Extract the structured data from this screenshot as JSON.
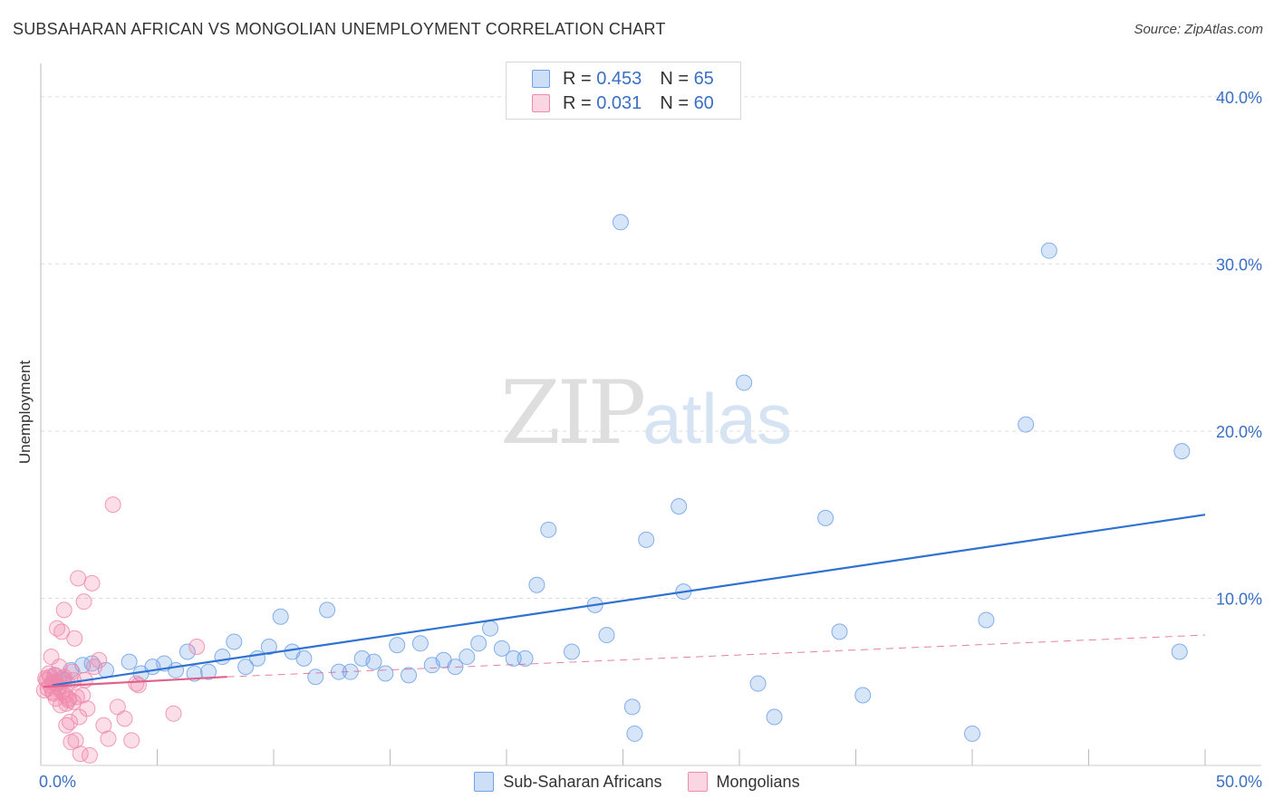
{
  "header": {
    "title": "SUBSAHARAN AFRICAN VS MONGOLIAN UNEMPLOYMENT CORRELATION CHART",
    "source": "Source: ZipAtlas.com"
  },
  "watermark": {
    "zip": "ZIP",
    "atlas": "atlas"
  },
  "legend": {
    "rows": [
      {
        "r_label": "R =",
        "r_value": "0.453",
        "n_label": "N =",
        "n_value": "65",
        "color": "#6fa2e8"
      },
      {
        "r_label": "R =",
        "r_value": "0.031",
        "n_label": "N =",
        "n_value": "60",
        "color": "#f08aab"
      }
    ],
    "bottom": [
      {
        "label": "Sub-Saharan Africans",
        "color": "#6fa2e8"
      },
      {
        "label": "Mongolians",
        "color": "#f08aab"
      }
    ]
  },
  "chart_data": {
    "type": "scatter",
    "title": "SUBSAHARAN AFRICAN VS MONGOLIAN UNEMPLOYMENT CORRELATION CHART",
    "xlabel": "",
    "ylabel": "Unemployment",
    "xlim": [
      0,
      50
    ],
    "ylim": [
      0,
      42
    ],
    "x_tick_labels": [
      "0.0%",
      "50.0%"
    ],
    "y_ticks": [
      10,
      20,
      30,
      40
    ],
    "y_tick_labels": [
      "10.0%",
      "20.0%",
      "30.0%",
      "40.0%"
    ],
    "grid": "horizontal-dashed",
    "series": [
      {
        "name": "Sub-Saharan Africans",
        "color": "#6fa2e8",
        "trend": {
          "x": [
            0.5,
            50
          ],
          "y": [
            4.8,
            15.0
          ],
          "color": "#2f72d0"
        },
        "points": [
          [
            0.6,
            5.4
          ],
          [
            1.0,
            5.1
          ],
          [
            1.3,
            5.7
          ],
          [
            1.8,
            6.0
          ],
          [
            2.2,
            6.1
          ],
          [
            2.8,
            5.7
          ],
          [
            3.8,
            6.2
          ],
          [
            4.3,
            5.5
          ],
          [
            4.8,
            5.9
          ],
          [
            5.3,
            6.1
          ],
          [
            5.8,
            5.7
          ],
          [
            6.3,
            6.8
          ],
          [
            6.6,
            5.5
          ],
          [
            7.2,
            5.6
          ],
          [
            7.8,
            6.5
          ],
          [
            8.3,
            7.4
          ],
          [
            8.8,
            5.9
          ],
          [
            9.3,
            6.4
          ],
          [
            9.8,
            7.1
          ],
          [
            10.3,
            8.9
          ],
          [
            10.8,
            6.8
          ],
          [
            11.3,
            6.4
          ],
          [
            11.8,
            5.3
          ],
          [
            12.3,
            9.3
          ],
          [
            12.8,
            5.6
          ],
          [
            13.3,
            5.6
          ],
          [
            13.8,
            6.4
          ],
          [
            14.3,
            6.2
          ],
          [
            14.8,
            5.5
          ],
          [
            15.3,
            7.2
          ],
          [
            15.8,
            5.4
          ],
          [
            16.3,
            7.3
          ],
          [
            16.8,
            6.0
          ],
          [
            17.3,
            6.3
          ],
          [
            17.8,
            5.9
          ],
          [
            18.3,
            6.5
          ],
          [
            18.8,
            7.3
          ],
          [
            19.3,
            8.2
          ],
          [
            19.8,
            7.0
          ],
          [
            20.3,
            6.4
          ],
          [
            20.8,
            6.4
          ],
          [
            21.3,
            10.8
          ],
          [
            21.8,
            14.1
          ],
          [
            22.8,
            6.8
          ],
          [
            23.8,
            9.6
          ],
          [
            24.3,
            7.8
          ],
          [
            24.9,
            32.5
          ],
          [
            25.4,
            3.5
          ],
          [
            25.5,
            1.9
          ],
          [
            26.0,
            13.5
          ],
          [
            27.4,
            15.5
          ],
          [
            27.6,
            10.4
          ],
          [
            30.2,
            22.9
          ],
          [
            30.8,
            4.9
          ],
          [
            31.5,
            2.9
          ],
          [
            33.7,
            14.8
          ],
          [
            34.3,
            8.0
          ],
          [
            35.3,
            4.2
          ],
          [
            40.0,
            1.9
          ],
          [
            40.6,
            8.7
          ],
          [
            42.3,
            20.4
          ],
          [
            43.3,
            30.8
          ],
          [
            48.9,
            6.8
          ],
          [
            49.0,
            18.8
          ],
          [
            0.8,
            5.0
          ]
        ]
      },
      {
        "name": "Mongolians",
        "color": "#f08aab",
        "trend": {
          "x": [
            0.1,
            8.0
          ],
          "y": [
            4.7,
            5.3
          ],
          "color": "#e0608a"
        },
        "dashed_trend": {
          "x": [
            8.0,
            50
          ],
          "y": [
            5.3,
            7.8
          ]
        },
        "points": [
          [
            0.2,
            5.2
          ],
          [
            0.3,
            4.6
          ],
          [
            0.35,
            5.5
          ],
          [
            0.4,
            4.8
          ],
          [
            0.45,
            6.5
          ],
          [
            0.5,
            5.0
          ],
          [
            0.55,
            4.3
          ],
          [
            0.6,
            5.4
          ],
          [
            0.65,
            4.0
          ],
          [
            0.7,
            8.2
          ],
          [
            0.75,
            4.7
          ],
          [
            0.8,
            5.9
          ],
          [
            0.85,
            3.6
          ],
          [
            0.9,
            8.0
          ],
          [
            0.95,
            5.2
          ],
          [
            1.0,
            9.3
          ],
          [
            1.05,
            4.2
          ],
          [
            1.1,
            2.4
          ],
          [
            1.15,
            4.9
          ],
          [
            1.2,
            3.9
          ],
          [
            1.25,
            2.6
          ],
          [
            1.3,
            1.4
          ],
          [
            1.35,
            5.6
          ],
          [
            1.4,
            3.8
          ],
          [
            1.45,
            7.6
          ],
          [
            1.5,
            1.5
          ],
          [
            1.55,
            4.1
          ],
          [
            1.6,
            11.2
          ],
          [
            1.65,
            2.9
          ],
          [
            1.7,
            0.7
          ],
          [
            1.8,
            4.2
          ],
          [
            1.85,
            9.8
          ],
          [
            1.9,
            5.1
          ],
          [
            2.0,
            3.4
          ],
          [
            2.1,
            0.6
          ],
          [
            2.3,
            5.9
          ],
          [
            2.5,
            6.3
          ],
          [
            2.7,
            2.4
          ],
          [
            2.9,
            1.6
          ],
          [
            3.1,
            15.6
          ],
          [
            3.3,
            3.5
          ],
          [
            3.6,
            2.8
          ],
          [
            3.9,
            1.5
          ],
          [
            4.1,
            4.9
          ],
          [
            4.2,
            4.8
          ],
          [
            5.7,
            3.1
          ],
          [
            6.7,
            7.1
          ],
          [
            0.15,
            4.5
          ],
          [
            0.25,
            5.1
          ],
          [
            0.5,
            4.4
          ],
          [
            0.6,
            5.0
          ],
          [
            0.8,
            4.6
          ],
          [
            1.0,
            5.3
          ],
          [
            1.2,
            4.0
          ],
          [
            1.4,
            5.1
          ],
          [
            0.4,
            5.3
          ],
          [
            0.7,
            4.9
          ],
          [
            2.2,
            10.9
          ],
          [
            1.1,
            3.7
          ],
          [
            0.9,
            4.4
          ]
        ]
      }
    ]
  }
}
